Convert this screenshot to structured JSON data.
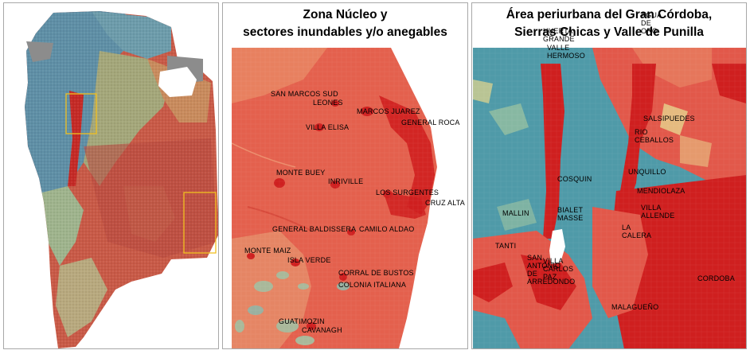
{
  "colors": {
    "low": "#4f8fa6",
    "low_mid": "#9fc4a0",
    "mid": "#e7b77c",
    "high": "#e2584a",
    "very_high": "#cf1f1f",
    "no_data": "#8c8c8c",
    "inset_box": "#f0c020"
  },
  "panels": {
    "province": {
      "title": []
    },
    "nucleus": {
      "title": [
        "Zona Núcleo y",
        "sectores inundables y/o anegables"
      ],
      "places": [
        "SAN MARCOS SUD",
        "LEONES",
        "MARCOS JUAREZ",
        "GENERAL ROCA",
        "VILLA ELISA",
        "MONTE BUEY",
        "INRIVILLE",
        "LOS SURGENTES",
        "CRUZ ALTA",
        "GENERAL BALDISSERA",
        "CAMILO ALDAO",
        "MONTE MAIZ",
        "ISLA VERDE",
        "CORRAL DE BUSTOS",
        "COLONIA ITALIANA",
        "GUATIMOZIN",
        "CAVANAGH"
      ]
    },
    "periurban": {
      "title": [
        "Área periurbana del Gran Córdoba,",
        "Sierras Chicas y Valle de Punilla"
      ],
      "places": [
        "AGUA DE ORO",
        "HUERTA GRANDE",
        "VALLE HERMOSO",
        "SALSIPUEDES",
        "RIO CEBALLOS",
        "UNQUILLO",
        "COSQUIN",
        "MENDIOLAZA",
        "VILLA ALLENDE",
        "MALLIN",
        "BIALET MASSE",
        "LA CALERA",
        "TANTI",
        "VILLA CARLOS PAZ",
        "CORDOBA",
        "SAN ANTONIO DE ARREDONDO",
        "MALAGUEÑO"
      ]
    }
  }
}
